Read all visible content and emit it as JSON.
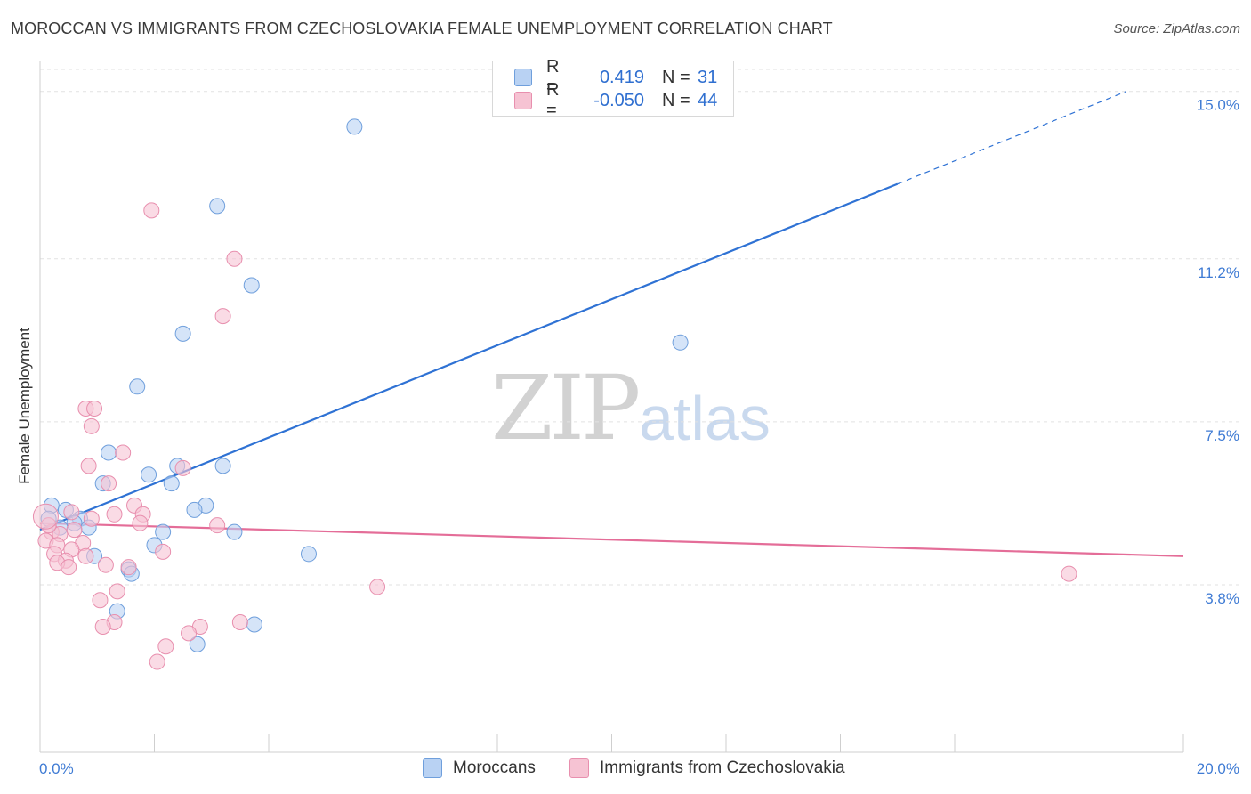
{
  "header": {
    "title": "MOROCCAN VS IMMIGRANTS FROM CZECHOSLOVAKIA FEMALE UNEMPLOYMENT CORRELATION CHART",
    "source": "Source: ZipAtlas.com"
  },
  "watermark": {
    "zip": "ZIP",
    "atlas": "atlas"
  },
  "legend_top": {
    "rows": [
      {
        "r_label": "R =",
        "r_value": "0.419",
        "n_label": "N =",
        "n_value": "31"
      },
      {
        "r_label": "R =",
        "r_value": "-0.050",
        "n_label": "N =",
        "n_value": "44"
      }
    ]
  },
  "colors": {
    "blue_fill": "#b9d2f3",
    "blue_stroke": "#6f9fdc",
    "blue_line": "#2f72d4",
    "pink_fill": "#f6c3d3",
    "pink_stroke": "#e88fae",
    "pink_line": "#e46d98",
    "tick_text": "#3f7bd4",
    "grid": "#e2e2e2"
  },
  "chart_data": {
    "type": "scatter",
    "title": "MOROCCAN VS IMMIGRANTS FROM CZECHOSLOVAKIA FEMALE UNEMPLOYMENT CORRELATION CHART",
    "xlabel": "",
    "ylabel": "Female Unemployment",
    "xlim": [
      0,
      20
    ],
    "ylim": [
      0,
      15.5
    ],
    "x_ticks": [
      "0.0%",
      "20.0%"
    ],
    "y_ticks": [
      {
        "value": 3.8,
        "label": "3.8%"
      },
      {
        "value": 7.5,
        "label": "7.5%"
      },
      {
        "value": 11.2,
        "label": "11.2%"
      },
      {
        "value": 15.0,
        "label": "15.0%"
      }
    ],
    "series": [
      {
        "name": "Moroccans",
        "r": 0.419,
        "n": 31,
        "trend": {
          "x0": 0.0,
          "y0": 5.05,
          "x1": 15.0,
          "y1": 12.9,
          "dash_to_x": 19.0,
          "dash_to_y": 15.0
        },
        "points": [
          [
            5.5,
            14.2
          ],
          [
            3.1,
            12.4
          ],
          [
            3.7,
            10.6
          ],
          [
            2.5,
            9.5
          ],
          [
            11.2,
            9.3
          ],
          [
            1.7,
            8.3
          ],
          [
            1.2,
            6.8
          ],
          [
            3.2,
            6.5
          ],
          [
            2.4,
            6.5
          ],
          [
            1.9,
            6.3
          ],
          [
            1.1,
            6.1
          ],
          [
            2.3,
            6.1
          ],
          [
            0.2,
            5.6
          ],
          [
            2.9,
            5.6
          ],
          [
            2.7,
            5.5
          ],
          [
            0.45,
            5.5
          ],
          [
            0.7,
            5.3
          ],
          [
            0.6,
            5.2
          ],
          [
            0.35,
            5.1
          ],
          [
            0.85,
            5.1
          ],
          [
            2.15,
            5.0
          ],
          [
            3.4,
            5.0
          ],
          [
            2.0,
            4.7
          ],
          [
            0.95,
            4.45
          ],
          [
            4.7,
            4.5
          ],
          [
            1.55,
            4.15
          ],
          [
            1.6,
            4.05
          ],
          [
            1.35,
            3.2
          ],
          [
            3.75,
            2.9
          ],
          [
            2.75,
            2.45
          ],
          [
            0.15,
            5.3
          ]
        ]
      },
      {
        "name": "Immigrants from Czechoslovakia",
        "r": -0.05,
        "n": 44,
        "trend": {
          "x0": 0.0,
          "y0": 5.2,
          "x1": 20.0,
          "y1": 4.45
        },
        "points": [
          [
            1.95,
            12.3
          ],
          [
            3.4,
            11.2
          ],
          [
            3.2,
            9.9
          ],
          [
            0.8,
            7.8
          ],
          [
            0.95,
            7.8
          ],
          [
            0.9,
            7.4
          ],
          [
            1.45,
            6.8
          ],
          [
            0.85,
            6.5
          ],
          [
            2.5,
            6.45
          ],
          [
            1.2,
            6.1
          ],
          [
            1.65,
            5.6
          ],
          [
            0.55,
            5.45
          ],
          [
            1.3,
            5.4
          ],
          [
            1.8,
            5.4
          ],
          [
            0.9,
            5.3
          ],
          [
            1.75,
            5.2
          ],
          [
            3.1,
            5.15
          ],
          [
            0.2,
            5.0
          ],
          [
            0.35,
            4.95
          ],
          [
            0.1,
            4.8
          ],
          [
            0.75,
            4.75
          ],
          [
            0.3,
            4.7
          ],
          [
            0.55,
            4.6
          ],
          [
            2.15,
            4.55
          ],
          [
            0.25,
            4.5
          ],
          [
            0.8,
            4.45
          ],
          [
            0.45,
            4.35
          ],
          [
            0.3,
            4.3
          ],
          [
            0.5,
            4.2
          ],
          [
            1.15,
            4.25
          ],
          [
            1.55,
            4.2
          ],
          [
            18.0,
            4.05
          ],
          [
            5.9,
            3.75
          ],
          [
            1.35,
            3.65
          ],
          [
            1.05,
            3.45
          ],
          [
            1.3,
            2.95
          ],
          [
            1.1,
            2.85
          ],
          [
            3.5,
            2.95
          ],
          [
            2.8,
            2.85
          ],
          [
            2.6,
            2.7
          ],
          [
            2.2,
            2.4
          ],
          [
            2.05,
            2.05
          ],
          [
            0.15,
            5.15
          ],
          [
            0.6,
            5.05
          ]
        ]
      }
    ]
  },
  "bottom_legend": {
    "items": [
      "Moroccans",
      "Immigrants from Czechoslovakia"
    ]
  }
}
